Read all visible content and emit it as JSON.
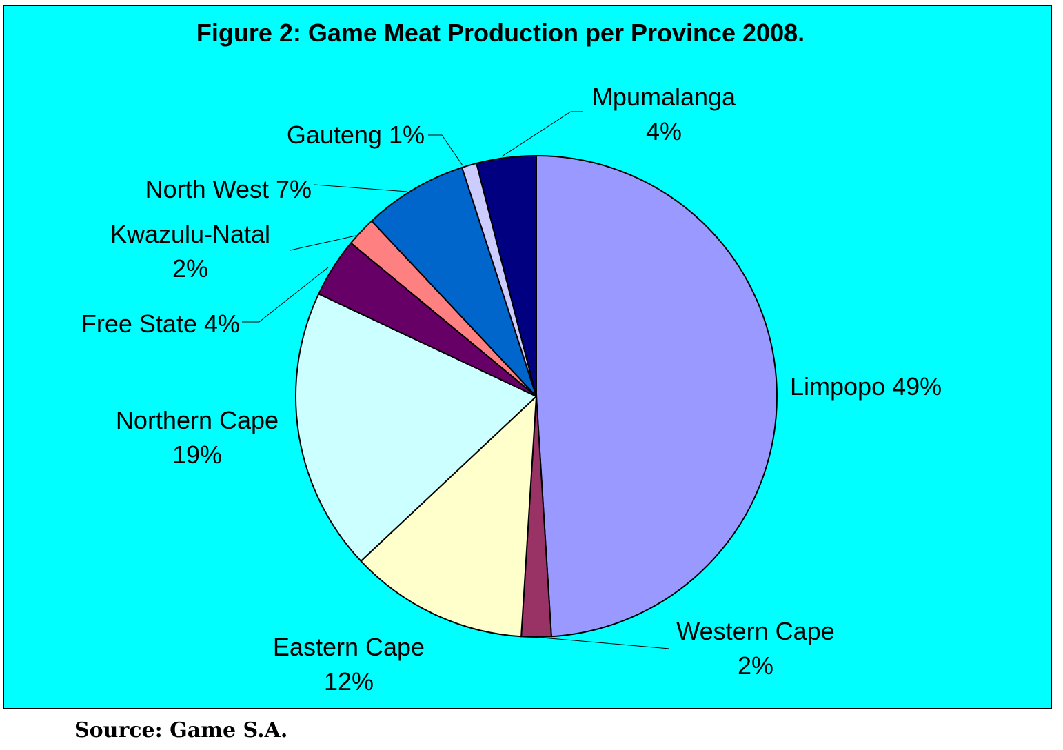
{
  "chart_data": {
    "type": "pie",
    "title": "Figure 2: Game Meat Production per Province 2008.",
    "background_color": "#00ffff",
    "slices": [
      {
        "name": "Limpopo",
        "value": 49,
        "label": "Limpopo 49%",
        "color": "#9999ff"
      },
      {
        "name": "Western Cape",
        "value": 2,
        "label": "Western Cape\n2%",
        "color": "#993366"
      },
      {
        "name": "Eastern Cape",
        "value": 12,
        "label": "Eastern Cape\n12%",
        "color": "#ffffcc"
      },
      {
        "name": "Northern Cape",
        "value": 19,
        "label": "Northern Cape\n19%",
        "color": "#ccffff"
      },
      {
        "name": "Free State",
        "value": 4,
        "label": "Free State 4%",
        "color": "#660066"
      },
      {
        "name": "Kwazulu-Natal",
        "value": 2,
        "label": "Kwazulu-Natal\n2%",
        "color": "#ff8080"
      },
      {
        "name": "North West",
        "value": 7,
        "label": "North West 7%",
        "color": "#0066cc"
      },
      {
        "name": "Gauteng",
        "value": 1,
        "label": "Gauteng 1%",
        "color": "#ccccff"
      },
      {
        "name": "Mpumalanga",
        "value": 4,
        "label": "Mpumalanga\n4%",
        "color": "#000080"
      }
    ]
  },
  "source_note": "Source: Game S.A."
}
